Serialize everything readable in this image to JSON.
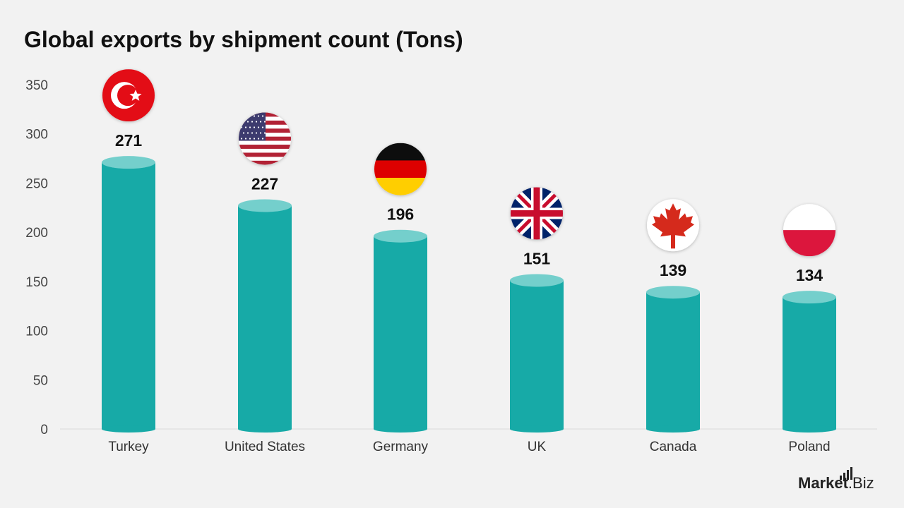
{
  "title": "Global exports by shipment count (Tons)",
  "brand": {
    "name_part1": "Market",
    "name_part2": ".Biz"
  },
  "chart_data": {
    "type": "bar",
    "title": "Global exports by shipment count (Tons)",
    "xlabel": "",
    "ylabel": "",
    "categories": [
      "Turkey",
      "United States",
      "Germany",
      "UK",
      "Canada",
      "Poland"
    ],
    "values": [
      271,
      227,
      196,
      151,
      139,
      134
    ],
    "value_labels": [
      "271",
      "227",
      "196",
      "151",
      "139",
      "134"
    ],
    "flags": [
      "turkey-flag",
      "united-states-flag",
      "germany-flag",
      "uk-flag",
      "canada-flag",
      "poland-flag"
    ],
    "ylim": [
      0,
      350
    ],
    "yticks": [
      0,
      50,
      100,
      150,
      200,
      250,
      300,
      350
    ],
    "grid": false,
    "legend": "none",
    "colors": {
      "bar": "#17aaa7",
      "bar_top": "#74cfcc",
      "baseline": "#d9d9d9",
      "tick_text": "#444444",
      "value_text": "#111111"
    }
  }
}
